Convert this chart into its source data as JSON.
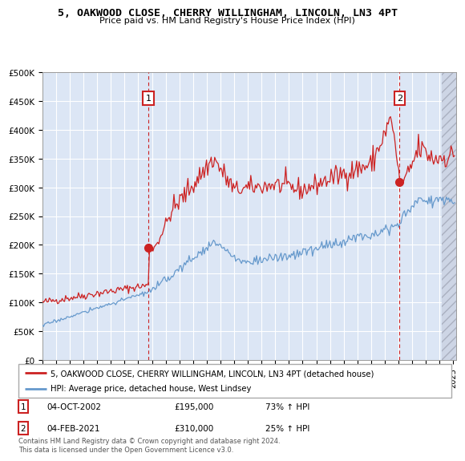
{
  "title": "5, OAKWOOD CLOSE, CHERRY WILLINGHAM, LINCOLN, LN3 4PT",
  "subtitle": "Price paid vs. HM Land Registry's House Price Index (HPI)",
  "ylim": [
    0,
    500000
  ],
  "yticks": [
    0,
    50000,
    100000,
    150000,
    200000,
    250000,
    300000,
    350000,
    400000,
    450000,
    500000
  ],
  "ytick_labels": [
    "£0",
    "£50K",
    "£100K",
    "£150K",
    "£200K",
    "£250K",
    "£300K",
    "£350K",
    "£400K",
    "£450K",
    "£500K"
  ],
  "sale1_year": 2002.75,
  "sale1_price": 195000,
  "sale2_year": 2021.08,
  "sale2_price": 310000,
  "red_color": "#cc2222",
  "blue_color": "#6699cc",
  "bg_color": "#dce6f5",
  "grid_color": "#ffffff",
  "legend_label_red": "5, OAKWOOD CLOSE, CHERRY WILLINGHAM, LINCOLN, LN3 4PT (detached house)",
  "legend_label_blue": "HPI: Average price, detached house, West Lindsey",
  "footer": "Contains HM Land Registry data © Crown copyright and database right 2024.\nThis data is licensed under the Open Government Licence v3.0."
}
